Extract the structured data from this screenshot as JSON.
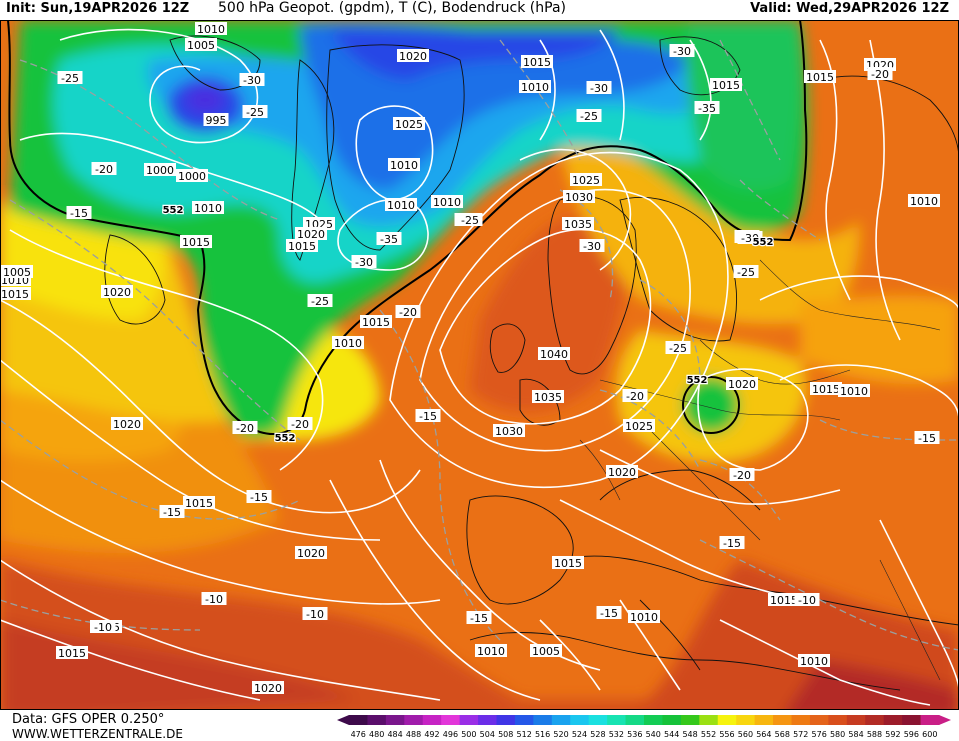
{
  "header": {
    "init": "Init: Sun,19APR2026 12Z",
    "title": "500 hPa Geopot. (gpdm), T (C), Bodendruck (hPa)",
    "valid": "Valid: Wed,29APR2026 12Z"
  },
  "footer": {
    "source": "Data: GFS OPER 0.250°",
    "site": "WWW.WETTERZENTRALE.DE"
  },
  "legend": {
    "values": [
      "476",
      "480",
      "484",
      "488",
      "492",
      "496",
      "500",
      "504",
      "508",
      "512",
      "516",
      "520",
      "524",
      "528",
      "532",
      "536",
      "540",
      "544",
      "548",
      "552",
      "556",
      "560",
      "564",
      "568",
      "572",
      "576",
      "580",
      "584",
      "588",
      "592",
      "596",
      "600"
    ],
    "colors": [
      "#3d0a4a",
      "#5a0e6b",
      "#7a168c",
      "#a01cab",
      "#c623c4",
      "#e236d9",
      "#9a2ee6",
      "#6b2de8",
      "#3f35e6",
      "#2457e8",
      "#1a7be8",
      "#19a2ee",
      "#1ac6ef",
      "#1ae0e0",
      "#17e3b2",
      "#14d986",
      "#13cc55",
      "#15c23a",
      "#35c81b",
      "#9be013",
      "#f6f30e",
      "#f8d60f",
      "#f7b60f",
      "#f59512",
      "#ee7a13",
      "#e4631a",
      "#d84e1c",
      "#c63b21",
      "#b22b25",
      "#9c1c2a",
      "#8a1330",
      "#c91e86"
    ]
  },
  "isobar_labels": [
    {
      "text": "1010",
      "pos": "a1"
    },
    {
      "text": "1005",
      "pos": "a2"
    },
    {
      "text": "995",
      "pos": "a3"
    },
    {
      "text": "1000",
      "pos": "a4"
    },
    {
      "text": "1000",
      "pos": "a5"
    },
    {
      "text": "1010",
      "pos": "a6"
    },
    {
      "text": "1015",
      "pos": "a7"
    },
    {
      "text": "1020",
      "pos": "a8"
    },
    {
      "text": "1020",
      "pos": "a9"
    },
    {
      "text": "1015",
      "pos": "a10"
    },
    {
      "text": "1025",
      "pos": "a11"
    },
    {
      "text": "1010",
      "pos": "a12"
    },
    {
      "text": "1010",
      "pos": "a13"
    },
    {
      "text": "1010",
      "pos": "a14"
    },
    {
      "text": "1025",
      "pos": "a15"
    },
    {
      "text": "1020",
      "pos": "a16"
    },
    {
      "text": "1015",
      "pos": "a17"
    },
    {
      "text": "1015",
      "pos": "a18"
    },
    {
      "text": "1010",
      "pos": "a19"
    },
    {
      "text": "1015",
      "pos": "a20"
    },
    {
      "text": "1020",
      "pos": "a21"
    },
    {
      "text": "1025",
      "pos": "a22"
    },
    {
      "text": "1030",
      "pos": "a23"
    },
    {
      "text": "1035",
      "pos": "a24"
    },
    {
      "text": "1040",
      "pos": "a25"
    },
    {
      "text": "1035",
      "pos": "a26"
    },
    {
      "text": "1030",
      "pos": "a27"
    },
    {
      "text": "1025",
      "pos": "a28"
    },
    {
      "text": "1020",
      "pos": "a29"
    },
    {
      "text": "1020",
      "pos": "a30"
    },
    {
      "text": "1015",
      "pos": "a31"
    },
    {
      "text": "1010",
      "pos": "a32"
    },
    {
      "text": "1015",
      "pos": "a33"
    },
    {
      "text": "1020",
      "pos": "a34"
    },
    {
      "text": "1020",
      "pos": "a35"
    },
    {
      "text": "1015",
      "pos": "a36"
    },
    {
      "text": "1015",
      "pos": "a37"
    },
    {
      "text": "1020",
      "pos": "a38"
    },
    {
      "text": "1015",
      "pos": "a39"
    },
    {
      "text": "1010",
      "pos": "a40"
    },
    {
      "text": "1005",
      "pos": "a41"
    },
    {
      "text": "1010",
      "pos": "a42"
    },
    {
      "text": "1015",
      "pos": "a43"
    },
    {
      "text": "1010",
      "pos": "a44"
    },
    {
      "text": "1015",
      "pos": "a45"
    },
    {
      "text": "1010",
      "pos": "a46"
    },
    {
      "text": "1010",
      "pos": "a47"
    },
    {
      "text": "1010",
      "pos": "a48"
    },
    {
      "text": "1020",
      "pos": "a49"
    },
    {
      "text": "1015",
      "pos": "a50"
    },
    {
      "text": "1020",
      "pos": "a51"
    },
    {
      "text": "1020",
      "pos": "a52"
    },
    {
      "text": "1020",
      "pos": "a53"
    },
    {
      "text": "1015",
      "pos": "a54"
    },
    {
      "text": "1005",
      "pos": "a55"
    },
    {
      "text": "1020",
      "pos": "a56"
    },
    {
      "text": "1010",
      "pos": "a57"
    },
    {
      "text": "1015",
      "pos": "a58"
    },
    {
      "text": "1010",
      "pos": "a59"
    },
    {
      "text": "1010",
      "pos": "a60"
    }
  ],
  "temp_labels": [
    {
      "text": "-25",
      "pos": "t1"
    },
    {
      "text": "-25",
      "pos": "t2"
    },
    {
      "text": "-30",
      "pos": "t3"
    },
    {
      "text": "-20",
      "pos": "t4"
    },
    {
      "text": "-15",
      "pos": "t5"
    },
    {
      "text": "-30",
      "pos": "t6"
    },
    {
      "text": "-30",
      "pos": "t7"
    },
    {
      "text": "-25",
      "pos": "t8"
    },
    {
      "text": "-35",
      "pos": "t9"
    },
    {
      "text": "-35",
      "pos": "t10"
    },
    {
      "text": "-30",
      "pos": "t11"
    },
    {
      "text": "-25",
      "pos": "t12"
    },
    {
      "text": "-20",
      "pos": "t13"
    },
    {
      "text": "-25",
      "pos": "t14"
    },
    {
      "text": "-20",
      "pos": "t15"
    },
    {
      "text": "-20",
      "pos": "t16"
    },
    {
      "text": "-15",
      "pos": "t17"
    },
    {
      "text": "-15",
      "pos": "t18"
    },
    {
      "text": "-15",
      "pos": "t19"
    },
    {
      "text": "-10",
      "pos": "t20"
    },
    {
      "text": "-10",
      "pos": "t21"
    },
    {
      "text": "-10",
      "pos": "t22"
    },
    {
      "text": "-15",
      "pos": "t23"
    },
    {
      "text": "-25",
      "pos": "t24"
    },
    {
      "text": "-25",
      "pos": "t25"
    },
    {
      "text": "-20",
      "pos": "t26"
    },
    {
      "text": "-20",
      "pos": "t27"
    },
    {
      "text": "-15",
      "pos": "t28"
    },
    {
      "text": "-15",
      "pos": "t29"
    },
    {
      "text": "-10",
      "pos": "t30"
    },
    {
      "text": "-15",
      "pos": "t31"
    },
    {
      "text": "-25",
      "pos": "t32"
    },
    {
      "text": "-30",
      "pos": "t33"
    },
    {
      "text": "-20",
      "pos": "t34"
    },
    {
      "text": "-25",
      "pos": "t35"
    },
    {
      "text": "-30",
      "pos": "t36"
    }
  ],
  "geopot_labels": [
    {
      "text": "552",
      "pos": "g1"
    },
    {
      "text": "552",
      "pos": "g2"
    },
    {
      "text": "552",
      "pos": "g3"
    },
    {
      "text": "552",
      "pos": "g4"
    }
  ]
}
